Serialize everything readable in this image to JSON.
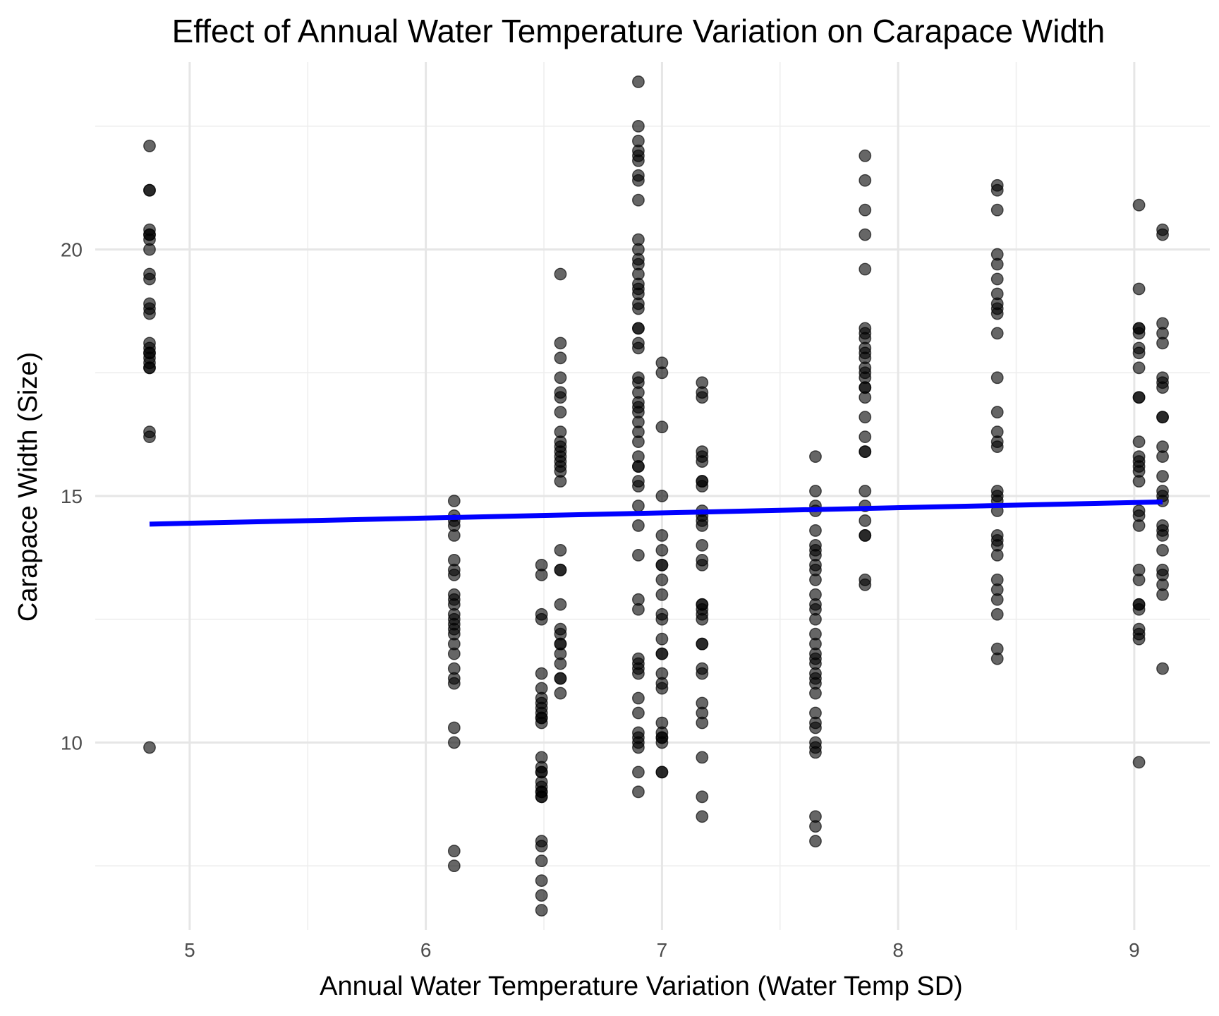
{
  "chart_data": {
    "type": "scatter",
    "title": "Effect of Annual Water Temperature Variation on Carapace Width",
    "xlabel": "Annual Water Temperature Variation (Water Temp SD)",
    "ylabel": "Carapace Width (Size)",
    "xlim": [
      4.6,
      9.32
    ],
    "ylim": [
      6.2,
      23.8
    ],
    "x_major_ticks": [
      5,
      6,
      7,
      8,
      9
    ],
    "x_minor_ticks": [
      5.5,
      6.5,
      7.5,
      8.5
    ],
    "y_major_ticks": [
      10,
      15,
      20
    ],
    "y_minor_ticks": [
      7.5,
      12.5,
      17.5,
      22.5
    ],
    "x_tick_labels": [
      "5",
      "6",
      "7",
      "8",
      "9"
    ],
    "y_tick_labels": [
      "10",
      "15",
      "20"
    ],
    "grid": true,
    "legend": "none",
    "point_color": "#000000",
    "point_alpha": 0.6,
    "series": [
      {
        "type": "scatter",
        "groups": [
          {
            "x": 4.83,
            "y": [
              22.1,
              21.2,
              21.2,
              20.4,
              20.3,
              20.3,
              20.2,
              20.0,
              19.5,
              19.4,
              18.9,
              18.8,
              18.7,
              18.1,
              18.0,
              17.9,
              17.9,
              17.8,
              17.7,
              17.6,
              17.6,
              16.3,
              16.2,
              9.9
            ]
          },
          {
            "x": 6.12,
            "y": [
              14.9,
              14.6,
              14.5,
              14.4,
              14.2,
              13.7,
              13.5,
              13.4,
              13.0,
              12.9,
              12.8,
              12.6,
              12.5,
              12.4,
              12.3,
              12.2,
              12.0,
              11.8,
              11.5,
              11.3,
              11.2,
              10.3,
              10.0,
              7.8,
              7.5
            ]
          },
          {
            "x": 6.49,
            "y": [
              13.6,
              13.4,
              12.6,
              12.5,
              11.4,
              11.1,
              10.9,
              10.8,
              10.7,
              10.6,
              10.5,
              10.5,
              10.4,
              9.7,
              9.5,
              9.4,
              9.4,
              9.2,
              9.1,
              9.0,
              9.0,
              8.9,
              8.9,
              8.0,
              7.9,
              7.6,
              7.2,
              6.9,
              6.6
            ]
          },
          {
            "x": 6.57,
            "y": [
              19.5,
              18.1,
              17.8,
              17.4,
              17.1,
              17.0,
              16.7,
              16.3,
              16.1,
              16.0,
              15.9,
              15.8,
              15.7,
              15.6,
              15.5,
              15.3,
              13.9,
              13.5,
              13.5,
              12.8,
              12.3,
              12.2,
              12.0,
              12.0,
              11.8,
              11.6,
              11.3,
              11.3,
              11.0
            ]
          },
          {
            "x": 6.9,
            "y": [
              23.4,
              22.5,
              22.2,
              22.0,
              21.9,
              21.8,
              21.5,
              21.4,
              21.0,
              20.2,
              20.0,
              19.8,
              19.7,
              19.5,
              19.3,
              19.2,
              19.1,
              18.9,
              18.8,
              18.4,
              18.4,
              18.1,
              18.0,
              17.4,
              17.3,
              17.1,
              16.9,
              16.8,
              16.7,
              16.5,
              16.3,
              16.1,
              15.8,
              15.6,
              15.6,
              15.3,
              15.2,
              14.8,
              14.4,
              13.8,
              12.9,
              12.7,
              11.7,
              11.6,
              11.5,
              11.4,
              10.9,
              10.6,
              10.2,
              10.1,
              10.0,
              9.9,
              9.4,
              9.0
            ]
          },
          {
            "x": 7.0,
            "y": [
              17.7,
              17.5,
              16.4,
              15.0,
              14.2,
              13.9,
              13.6,
              13.6,
              13.3,
              13.0,
              12.6,
              12.5,
              12.1,
              11.8,
              11.8,
              11.4,
              11.2,
              11.1,
              10.4,
              10.2,
              10.1,
              10.1,
              10.0,
              9.4,
              9.4
            ]
          },
          {
            "x": 7.17,
            "y": [
              17.3,
              17.1,
              17.0,
              15.9,
              15.8,
              15.7,
              15.3,
              15.3,
              15.2,
              14.7,
              14.6,
              14.5,
              14.4,
              14.0,
              13.7,
              13.6,
              12.8,
              12.8,
              12.7,
              12.6,
              12.5,
              12.0,
              12.0,
              11.5,
              11.4,
              10.8,
              10.6,
              10.4,
              9.7,
              8.9,
              8.5
            ]
          },
          {
            "x": 7.65,
            "y": [
              15.8,
              15.1,
              14.8,
              14.7,
              14.3,
              14.0,
              13.9,
              13.8,
              13.6,
              13.5,
              13.3,
              13.0,
              12.8,
              12.7,
              12.5,
              12.2,
              12.0,
              11.8,
              11.7,
              11.6,
              11.4,
              11.3,
              11.2,
              11.0,
              10.6,
              10.4,
              10.3,
              10.0,
              9.9,
              9.8,
              8.5,
              8.3,
              8.0
            ]
          },
          {
            "x": 7.86,
            "y": [
              21.9,
              21.4,
              20.8,
              20.3,
              19.6,
              18.4,
              18.3,
              18.2,
              18.0,
              17.9,
              17.8,
              17.6,
              17.5,
              17.4,
              17.2,
              17.2,
              17.0,
              16.6,
              16.2,
              15.9,
              15.9,
              15.1,
              14.8,
              14.5,
              14.2,
              14.2,
              13.3,
              13.2
            ]
          },
          {
            "x": 8.42,
            "y": [
              21.3,
              21.2,
              20.8,
              19.9,
              19.7,
              19.4,
              19.1,
              18.9,
              18.8,
              18.7,
              18.3,
              17.4,
              16.7,
              16.3,
              16.1,
              16.0,
              15.1,
              15.0,
              14.9,
              14.7,
              14.2,
              14.1,
              14.0,
              13.8,
              13.3,
              13.1,
              12.9,
              12.6,
              11.9,
              11.7
            ]
          },
          {
            "x": 9.02,
            "y": [
              20.9,
              19.2,
              18.4,
              18.4,
              18.3,
              18.0,
              17.9,
              17.6,
              17.0,
              17.0,
              16.1,
              15.8,
              15.7,
              15.6,
              15.5,
              15.3,
              14.7,
              14.6,
              14.4,
              13.5,
              13.3,
              12.8,
              12.8,
              12.7,
              12.3,
              12.2,
              12.1,
              9.6
            ]
          },
          {
            "x": 9.12,
            "y": [
              20.4,
              20.3,
              18.5,
              18.3,
              18.1,
              17.4,
              17.3,
              17.2,
              16.6,
              16.6,
              16.0,
              15.8,
              15.4,
              15.1,
              15.0,
              14.9,
              14.4,
              14.3,
              14.2,
              13.9,
              13.5,
              13.4,
              13.2,
              13.0,
              11.5
            ]
          }
        ]
      },
      {
        "type": "line",
        "x": [
          4.83,
          9.12
        ],
        "y": [
          14.43,
          14.88
        ],
        "color": "#0000ff"
      }
    ]
  }
}
